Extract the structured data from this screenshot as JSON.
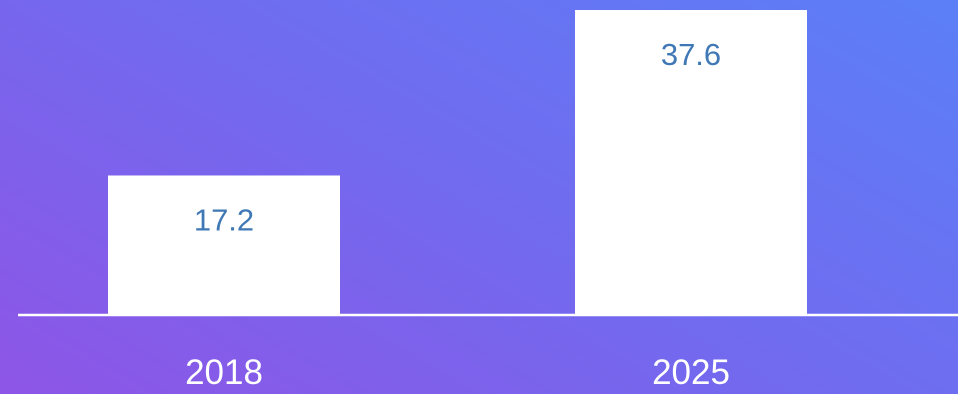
{
  "chart_data": {
    "type": "bar",
    "categories": [
      "2018",
      "2025"
    ],
    "values": [
      17.2,
      37.6
    ],
    "title": "",
    "xlabel": "",
    "ylabel": "",
    "ylim": [
      0,
      37.6
    ],
    "grid": false,
    "legend": "none",
    "data_labels": true
  },
  "colors": {
    "background_start": "#8e55e6",
    "background_end": "#5b7ff7",
    "bar": "#ffffff",
    "data_label": "#3f78b5",
    "axis": "#ffffff"
  }
}
